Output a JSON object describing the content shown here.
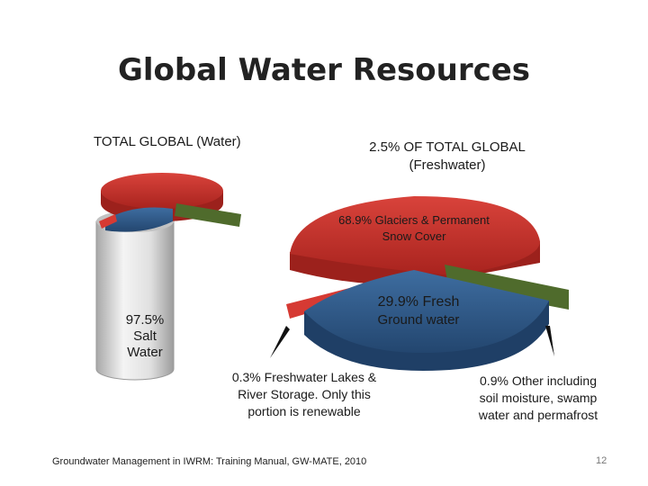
{
  "slide": {
    "title": "Global Water Resources",
    "footer": "Groundwater Management in IWRM: Training Manual, GW-MATE, 2010",
    "page_number": "12"
  },
  "labels": {
    "total_heading": "TOTAL GLOBAL (Water)",
    "fresh_heading_line1": "2.5% OF TOTAL GLOBAL",
    "fresh_heading_line2": "(Freshwater)",
    "glaciers_line1": "68.9% Glaciers & Permanent",
    "glaciers_line2": "Snow Cover",
    "ground_line1": "29.9% Fresh",
    "ground_line2": "Ground water",
    "salt_line1": "97.5%",
    "salt_line2": "Salt",
    "salt_line3": "Water",
    "lakes_line1": "0.3% Freshwater Lakes &",
    "lakes_line2": "River Storage. Only this",
    "lakes_line3": "portion is renewable",
    "other_line1": "0.9% Other including",
    "other_line2": "soil moisture, swamp",
    "other_line3": "water and permafrost"
  },
  "colors": {
    "glaciers": "#c8312b",
    "groundwater": "#2f5d8f",
    "lakes": "#d63a33",
    "other": "#4f6b2c",
    "salt": "#d4d4d4"
  },
  "chart_data": [
    {
      "type": "pie",
      "title": "TOTAL GLOBAL (Water)",
      "categories": [
        "Salt Water",
        "Freshwater"
      ],
      "values": [
        97.5,
        2.5
      ]
    },
    {
      "type": "pie",
      "title": "2.5% OF TOTAL GLOBAL (Freshwater)",
      "categories": [
        "Glaciers & Permanent Snow Cover",
        "Fresh Ground water",
        "Freshwater Lakes & River Storage",
        "Other including soil moisture, swamp water and permafrost"
      ],
      "values": [
        68.9,
        29.9,
        0.3,
        0.9
      ]
    }
  ]
}
